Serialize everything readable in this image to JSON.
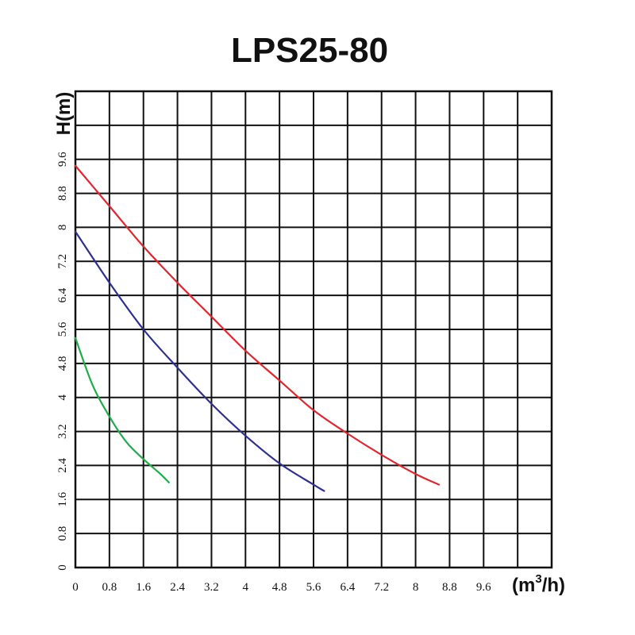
{
  "chart_data": {
    "type": "line",
    "title": "LPS25-80",
    "xlabel": "(m³/h)",
    "xlabel_base": "(m",
    "xlabel_sup": "3",
    "xlabel_end": "/h)",
    "ylabel": "H(m)",
    "xlim": [
      0,
      11.2
    ],
    "ylim": [
      0,
      11.2
    ],
    "grid": true,
    "x_ticks": [
      "0",
      "0.8",
      "1.6",
      "2.4",
      "3.2",
      "4",
      "4.8",
      "5.6",
      "6.4",
      "7.2",
      "8",
      "8.8",
      "9.6"
    ],
    "y_ticks": [
      "0",
      "0.8",
      "1.6",
      "2.4",
      "3.2",
      "4",
      "4.8",
      "5.6",
      "6.4",
      "7.2",
      "8",
      "8.8",
      "9.6"
    ],
    "series": [
      {
        "color": "#e0262e",
        "x": [
          0,
          0.8,
          1.6,
          2.4,
          3.2,
          4.0,
          4.8,
          5.6,
          6.4,
          7.2,
          8.0,
          8.55
        ],
        "y": [
          9.45,
          8.5,
          7.55,
          6.7,
          5.9,
          5.1,
          4.4,
          3.7,
          3.15,
          2.65,
          2.2,
          1.95
        ]
      },
      {
        "color": "#2e3191",
        "x": [
          0,
          0.8,
          1.6,
          2.4,
          3.2,
          4.0,
          4.8,
          5.6,
          5.85
        ],
        "y": [
          7.9,
          6.7,
          5.6,
          4.7,
          3.85,
          3.1,
          2.45,
          1.95,
          1.8
        ]
      },
      {
        "color": "#1fad4a",
        "x": [
          0,
          0.4,
          0.8,
          1.2,
          1.6,
          2.0,
          2.2
        ],
        "y": [
          5.4,
          4.3,
          3.55,
          2.95,
          2.55,
          2.2,
          2.0
        ]
      }
    ]
  }
}
